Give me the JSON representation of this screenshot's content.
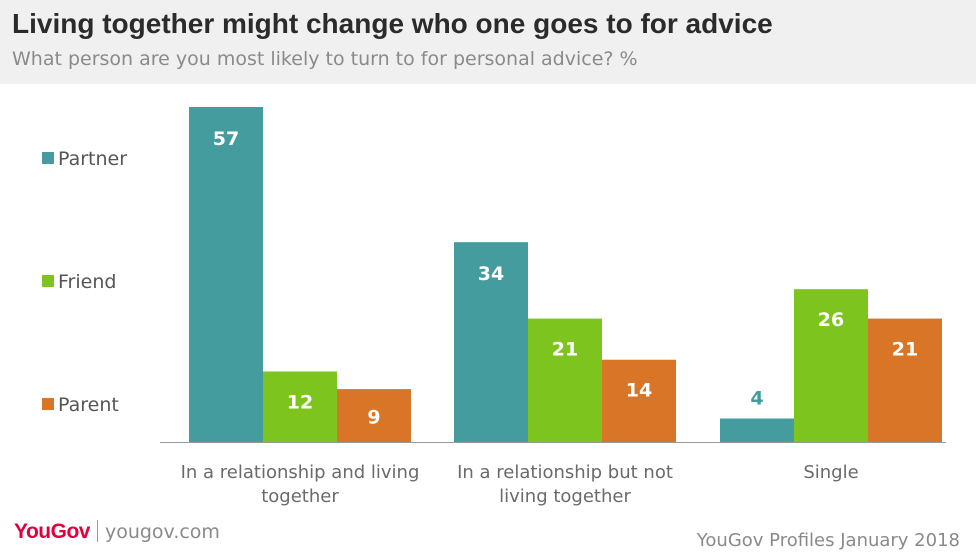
{
  "header": {
    "title": "Living together might change who one goes to for advice",
    "subtitle": "What person are you most likely to turn to for personal advice? %"
  },
  "chart_data": {
    "type": "bar",
    "categories": [
      [
        "In a relationship and living",
        "together"
      ],
      [
        "In a relationship but not",
        "living together"
      ],
      [
        "Single"
      ]
    ],
    "series": [
      {
        "name": "Partner",
        "color": "#449c9e",
        "values": [
          57,
          34,
          4
        ]
      },
      {
        "name": "Friend",
        "color": "#7dc41f",
        "values": [
          12,
          21,
          26
        ]
      },
      {
        "name": "Parent",
        "color": "#d87526",
        "values": [
          9,
          14,
          21
        ]
      }
    ],
    "ylim": [
      0,
      57
    ],
    "grid": false,
    "legend_position": "left"
  },
  "footer": {
    "logo": "YouGov",
    "url": "yougov.com",
    "source": "YouGov Profiles January 2018"
  }
}
